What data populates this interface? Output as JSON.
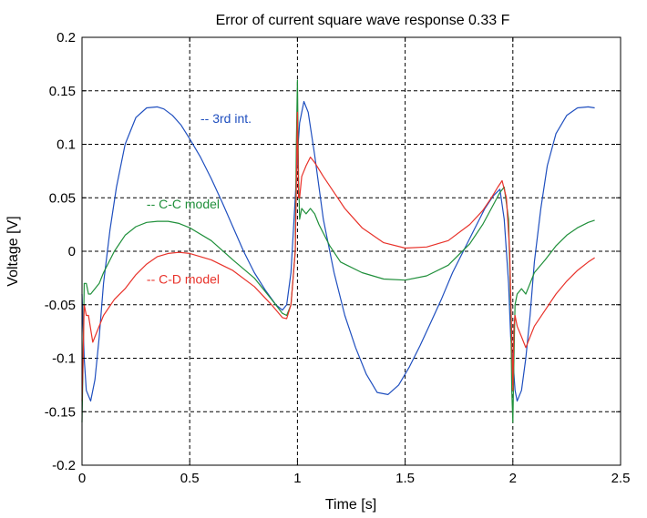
{
  "chart_data": {
    "type": "line",
    "title": "Error of current square wave response 0.33 F",
    "xlabel": "Time [s]",
    "ylabel": "Voltage [V]",
    "xlim": [
      0,
      2.5
    ],
    "ylim": [
      -0.2,
      0.2
    ],
    "xticks": [
      0,
      0.5,
      1,
      1.5,
      2,
      2.5
    ],
    "xtick_labels": [
      "0",
      "0.5",
      "1",
      "1.5",
      "2",
      "2.5"
    ],
    "yticks": [
      -0.2,
      -0.15,
      -0.1,
      -0.05,
      0,
      0.05,
      0.1,
      0.15,
      0.2
    ],
    "ytick_labels": [
      "-0.2",
      "-0.15",
      "-0.1",
      "-0.05",
      "0",
      "0.05",
      "0.1",
      "0.15",
      "0.2"
    ],
    "grid": true,
    "legend": "annotations next to curves",
    "series": [
      {
        "name": "-- 3rd int.",
        "color": "#1f4fbf",
        "label_at": [
          0.55,
          0.12
        ],
        "x": [
          0,
          0.01,
          0.02,
          0.04,
          0.06,
          0.08,
          0.1,
          0.13,
          0.16,
          0.2,
          0.25,
          0.3,
          0.35,
          0.38,
          0.42,
          0.46,
          0.5,
          0.55,
          0.6,
          0.65,
          0.7,
          0.75,
          0.8,
          0.85,
          0.9,
          0.93,
          0.95,
          0.97,
          0.99,
          1.0,
          1.01,
          1.03,
          1.05,
          1.08,
          1.12,
          1.17,
          1.22,
          1.27,
          1.32,
          1.37,
          1.42,
          1.47,
          1.52,
          1.57,
          1.62,
          1.67,
          1.72,
          1.77,
          1.82,
          1.87,
          1.91,
          1.94,
          1.96,
          1.98,
          1.99,
          2.0,
          2.01,
          2.02,
          2.04,
          2.06,
          2.08,
          2.1,
          2.13,
          2.16,
          2.2,
          2.25,
          2.3,
          2.35,
          2.38
        ],
        "y": [
          -0.04,
          -0.1,
          -0.13,
          -0.14,
          -0.12,
          -0.08,
          -0.03,
          0.02,
          0.06,
          0.1,
          0.125,
          0.134,
          0.135,
          0.133,
          0.127,
          0.118,
          0.105,
          0.088,
          0.068,
          0.046,
          0.023,
          0.0,
          -0.02,
          -0.036,
          -0.05,
          -0.055,
          -0.05,
          -0.02,
          0.05,
          0.09,
          0.12,
          0.14,
          0.13,
          0.09,
          0.03,
          -0.02,
          -0.06,
          -0.09,
          -0.115,
          -0.132,
          -0.134,
          -0.125,
          -0.108,
          -0.088,
          -0.066,
          -0.044,
          -0.02,
          0.0,
          0.02,
          0.04,
          0.052,
          0.058,
          0.03,
          -0.03,
          -0.08,
          -0.1,
          -0.13,
          -0.14,
          -0.13,
          -0.1,
          -0.06,
          -0.01,
          0.04,
          0.08,
          0.11,
          0.127,
          0.134,
          0.135,
          0.134
        ]
      },
      {
        "name": "-- C-C model",
        "color": "#1f8f3a",
        "label_at": [
          0.3,
          0.04
        ],
        "x": [
          0,
          0.005,
          0.01,
          0.02,
          0.03,
          0.04,
          0.06,
          0.08,
          0.1,
          0.15,
          0.2,
          0.25,
          0.3,
          0.35,
          0.4,
          0.45,
          0.5,
          0.6,
          0.7,
          0.8,
          0.88,
          0.93,
          0.95,
          0.97,
          0.99,
          0.995,
          1.0,
          1.005,
          1.01,
          1.02,
          1.04,
          1.06,
          1.08,
          1.1,
          1.15,
          1.2,
          1.3,
          1.4,
          1.5,
          1.6,
          1.7,
          1.8,
          1.86,
          1.9,
          1.94,
          1.96,
          1.98,
          1.99,
          1.995,
          2.0,
          2.005,
          2.01,
          2.02,
          2.04,
          2.06,
          2.08,
          2.1,
          2.15,
          2.2,
          2.25,
          2.3,
          2.35,
          2.38
        ],
        "y": [
          -0.16,
          -0.1,
          -0.03,
          -0.03,
          -0.04,
          -0.04,
          -0.035,
          -0.03,
          -0.02,
          0.0,
          0.015,
          0.023,
          0.027,
          0.028,
          0.028,
          0.026,
          0.022,
          0.01,
          -0.008,
          -0.025,
          -0.045,
          -0.058,
          -0.06,
          -0.05,
          0.0,
          0.1,
          0.16,
          0.07,
          0.03,
          0.04,
          0.035,
          0.04,
          0.035,
          0.025,
          0.005,
          -0.01,
          -0.02,
          -0.026,
          -0.027,
          -0.023,
          -0.013,
          0.007,
          0.025,
          0.04,
          0.055,
          0.06,
          0.03,
          -0.05,
          -0.13,
          -0.16,
          -0.1,
          -0.05,
          -0.04,
          -0.035,
          -0.04,
          -0.03,
          -0.02,
          -0.008,
          0.005,
          0.015,
          0.022,
          0.027,
          0.029
        ]
      },
      {
        "name": "-- C-D model",
        "color": "#e8322a",
        "label_at": [
          0.3,
          -0.03
        ],
        "x": [
          0,
          0.005,
          0.01,
          0.02,
          0.03,
          0.05,
          0.07,
          0.1,
          0.15,
          0.2,
          0.25,
          0.3,
          0.35,
          0.4,
          0.45,
          0.5,
          0.6,
          0.7,
          0.8,
          0.88,
          0.93,
          0.95,
          0.97,
          0.99,
          0.995,
          1.0,
          1.005,
          1.01,
          1.02,
          1.04,
          1.06,
          1.08,
          1.12,
          1.17,
          1.22,
          1.3,
          1.4,
          1.5,
          1.6,
          1.7,
          1.8,
          1.86,
          1.9,
          1.93,
          1.95,
          1.97,
          1.985,
          1.995,
          2.0,
          2.005,
          2.01,
          2.02,
          2.04,
          2.06,
          2.08,
          2.1,
          2.15,
          2.2,
          2.25,
          2.3,
          2.35,
          2.38
        ],
        "y": [
          -0.14,
          -0.1,
          -0.05,
          -0.06,
          -0.06,
          -0.085,
          -0.075,
          -0.06,
          -0.045,
          -0.035,
          -0.022,
          -0.012,
          -0.005,
          -0.002,
          -0.001,
          -0.002,
          -0.008,
          -0.018,
          -0.033,
          -0.05,
          -0.062,
          -0.063,
          -0.05,
          0.0,
          0.06,
          0.13,
          0.05,
          0.05,
          0.07,
          0.08,
          0.088,
          0.083,
          0.07,
          0.055,
          0.04,
          0.022,
          0.008,
          0.003,
          0.004,
          0.01,
          0.025,
          0.038,
          0.05,
          0.06,
          0.066,
          0.05,
          0.0,
          -0.08,
          -0.13,
          -0.07,
          -0.06,
          -0.07,
          -0.08,
          -0.09,
          -0.08,
          -0.07,
          -0.055,
          -0.04,
          -0.028,
          -0.018,
          -0.01,
          -0.006
        ]
      }
    ]
  }
}
